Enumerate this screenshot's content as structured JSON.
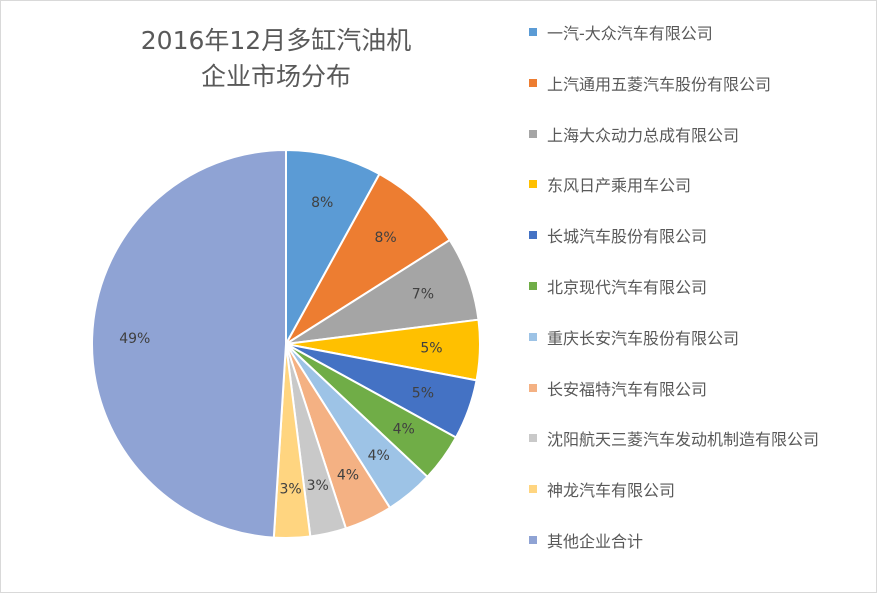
{
  "chart_data": {
    "type": "pie",
    "title_lines": [
      "2016年12月多缸汽油机",
      "企业市场分布"
    ],
    "legend_position": "right",
    "slices": [
      {
        "name": "一汽-大众汽车有限公司",
        "value": 8,
        "label": "8%",
        "color": "#5b9bd5"
      },
      {
        "name": "上汽通用五菱汽车股份有限公司",
        "value": 8,
        "label": "8%",
        "color": "#ed7d31"
      },
      {
        "name": "上海大众动力总成有限公司",
        "value": 7,
        "label": "7%",
        "color": "#a5a5a5"
      },
      {
        "name": "东风日产乘用车公司",
        "value": 5,
        "label": "5%",
        "color": "#ffc000"
      },
      {
        "name": "长城汽车股份有限公司",
        "value": 5,
        "label": "5%",
        "color": "#4472c4"
      },
      {
        "name": "北京现代汽车有限公司",
        "value": 4,
        "label": "4%",
        "color": "#70ad47"
      },
      {
        "name": "重庆长安汽车股份有限公司",
        "value": 4,
        "label": "4%",
        "color": "#9dc3e6"
      },
      {
        "name": "长安福特汽车有限公司",
        "value": 4,
        "label": "4%",
        "color": "#f4b183"
      },
      {
        "name": "沈阳航天三菱汽车发动机制造有限公司",
        "value": 3,
        "label": "3%",
        "color": "#c9c9c9"
      },
      {
        "name": "神龙汽车有限公司",
        "value": 3,
        "label": "3%",
        "color": "#ffd580"
      },
      {
        "name": "其他企业合计",
        "value": 49,
        "label": "49%",
        "color": "#8fa3d4"
      }
    ]
  }
}
